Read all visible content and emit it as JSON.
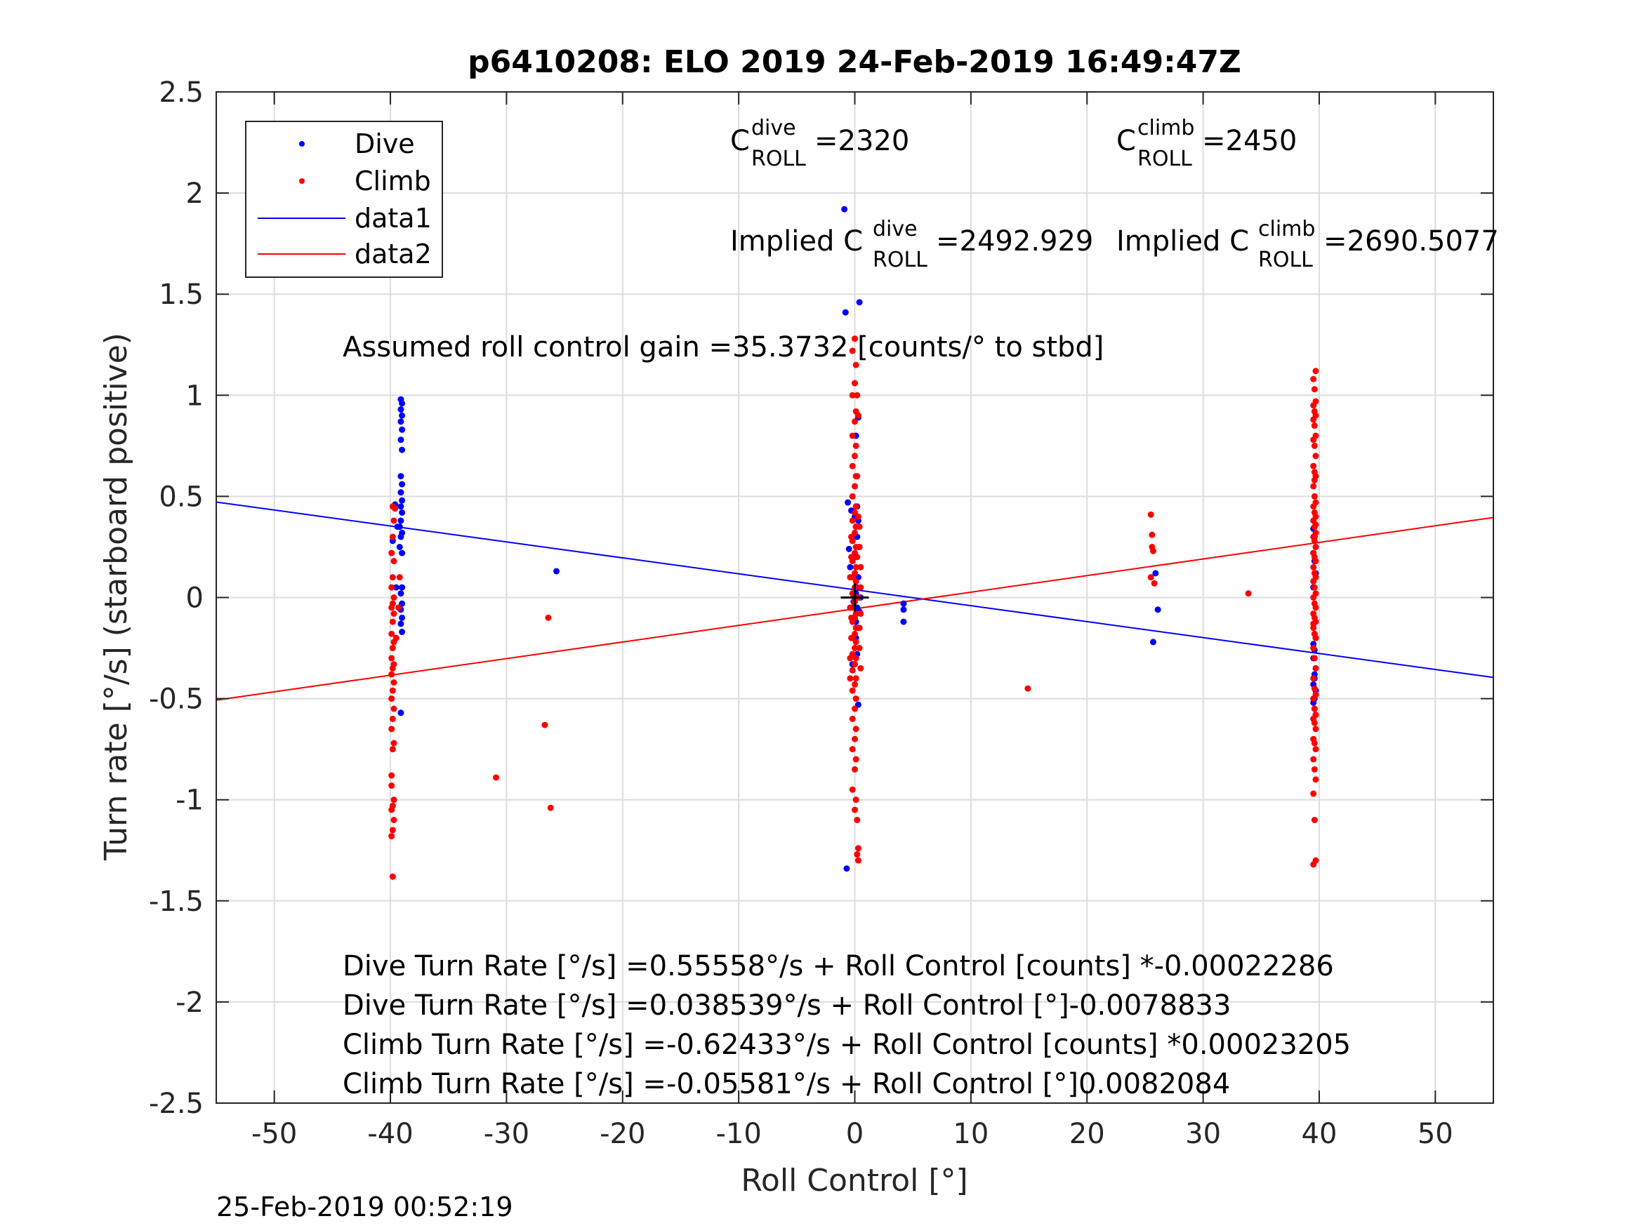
{
  "chart_data": {
    "type": "scatter",
    "title": "p6410208: ELO 2019 24-Feb-2019 16:49:47Z",
    "xlabel": "Roll Control [°]",
    "ylabel": "Turn rate [°/s] (starboard positive)",
    "xlim": [
      -55,
      55
    ],
    "ylim": [
      -2.5,
      2.5
    ],
    "xticks": [
      -50,
      -40,
      -30,
      -20,
      -10,
      0,
      10,
      20,
      30,
      40,
      50
    ],
    "xtick_labels": [
      "-50",
      "-40",
      "-30",
      "-20",
      "-10",
      "0",
      "10",
      "20",
      "30",
      "40",
      "50"
    ],
    "yticks": [
      -2.5,
      -2,
      -1.5,
      -1,
      -0.5,
      0,
      0.5,
      1,
      1.5,
      2,
      2.5
    ],
    "ytick_labels": [
      "-2.5",
      "-2",
      "-1.5",
      "-1",
      "-0.5",
      "0",
      "0.5",
      "1",
      "1.5",
      "2",
      "2.5"
    ],
    "grid": true,
    "legend_position": "top-left",
    "colors": {
      "dive": "#0000ff",
      "climb": "#ff0000",
      "marker": "#000000"
    },
    "legend": [
      {
        "label": "Dive",
        "kind": "points",
        "color": "#0000ff"
      },
      {
        "label": "Climb",
        "kind": "points",
        "color": "#ff0000"
      },
      {
        "label": "data1",
        "kind": "line",
        "color": "#0000ff"
      },
      {
        "label": "data2",
        "kind": "line",
        "color": "#ff0000"
      }
    ],
    "series": [
      {
        "name": "Dive",
        "color": "#0000ff",
        "x": [
          -39.1,
          -39.0,
          -39.1,
          -39.0,
          -39.1,
          -39.0,
          -39.1,
          -39.0,
          -39.1,
          -39.0,
          -39.1,
          -39.0,
          -39.1,
          -39.0,
          -39.1,
          -39.2,
          -39.0,
          -39.1,
          -39.0,
          -39.1,
          -39.0,
          -39.1,
          -39.0,
          -39.1,
          -39.0,
          -39.1,
          -39.6,
          -39.4,
          -39.8,
          -39.2,
          -39.5,
          -39.0,
          -25.7,
          -0.9,
          -0.8,
          -0.6,
          0.4,
          0.3,
          0.1,
          0.2,
          -0.3,
          0.0,
          0.3,
          -0.5,
          0.1,
          0.2,
          -0.2,
          0.4,
          0.0,
          -0.4,
          0.3,
          0.2,
          0.1,
          0.5,
          -0.1,
          0.2,
          0.0,
          -0.7,
          0.3,
          0.1,
          0.2,
          -0.2,
          0.3,
          0.1,
          0.4,
          4.2,
          4.2,
          4.2,
          25.9,
          26.1,
          25.7,
          39.5,
          39.6,
          39.7,
          39.5,
          39.6,
          39.7,
          39.5,
          39.6,
          39.7,
          39.5,
          39.6,
          39.5,
          39.7,
          39.6,
          39.5,
          39.7,
          39.6,
          39.5,
          39.6,
          39.7,
          39.5,
          39.6
        ],
        "y": [
          0.98,
          0.96,
          0.93,
          0.9,
          0.87,
          0.83,
          0.78,
          0.73,
          0.6,
          0.56,
          0.52,
          0.48,
          0.45,
          0.42,
          0.38,
          0.35,
          0.32,
          0.3,
          0.05,
          0.02,
          -0.03,
          -0.06,
          -0.1,
          -0.13,
          -0.17,
          -0.57,
          0.46,
          0.35,
          0.28,
          0.25,
          0.05,
          0.22,
          0.13,
          1.92,
          1.41,
          0.47,
          1.46,
          0.89,
          0.8,
          0.45,
          0.43,
          0.4,
          0.38,
          0.24,
          0.35,
          0.3,
          0.28,
          0.25,
          0.2,
          0.15,
          0.1,
          0.05,
          0.02,
          0.0,
          -0.02,
          -0.05,
          -0.1,
          -1.34,
          -0.15,
          -0.2,
          -0.28,
          -0.33,
          -0.53,
          -0.12,
          -0.07,
          -0.03,
          -0.06,
          -0.12,
          0.12,
          -0.06,
          -0.22,
          0.34,
          0.3,
          0.25,
          0.22,
          0.18,
          0.12,
          0.05,
          -0.18,
          -0.2,
          -0.23,
          -0.26,
          -0.3,
          -0.35,
          -0.4,
          -0.43,
          -0.46,
          -0.5,
          -0.52,
          -0.55,
          -0.58,
          -0.6,
          -0.38
        ]
      },
      {
        "name": "Climb",
        "color": "#ff0000",
        "x": [
          -39.8,
          -39.7,
          -39.8,
          -39.9,
          -39.7,
          -39.8,
          -39.9,
          -39.7,
          -39.8,
          -39.9,
          -39.7,
          -39.8,
          -39.9,
          -39.7,
          -39.8,
          -39.9,
          -39.7,
          -39.8,
          -39.9,
          -39.7,
          -39.8,
          -39.9,
          -39.7,
          -39.8,
          -39.9,
          -39.7,
          -39.8,
          -39.9,
          -39.7,
          -39.8,
          -39.9,
          -39.7,
          -39.8,
          -39.9,
          -39.8,
          -39.9,
          -39.6,
          -39.2,
          -39.3,
          -39.5,
          -30.9,
          -26.7,
          -26.4,
          -26.2,
          0.0,
          -0.2,
          0.1,
          0.0,
          -0.2,
          0.1,
          0.0,
          -0.2,
          0.1,
          0.0,
          -0.2,
          0.1,
          0.0,
          -0.2,
          0.1,
          0.0,
          -0.2,
          0.1,
          0.0,
          -0.2,
          0.1,
          0.0,
          -0.2,
          0.1,
          0.0,
          -0.2,
          0.1,
          0.0,
          -0.2,
          0.1,
          0.0,
          -0.2,
          0.1,
          0.0,
          -0.2,
          0.1,
          0.0,
          -0.2,
          0.1,
          0.0,
          -0.2,
          0.1,
          0.0,
          -0.2,
          0.1,
          0.0,
          -0.2,
          0.1,
          0.0,
          -0.2,
          0.1,
          0.0,
          -0.2,
          0.1,
          0.0,
          -0.2,
          0.1,
          0.0,
          0.2,
          0.3,
          0.2,
          0.3,
          0.2,
          0.3,
          0.2,
          0.3,
          0.2,
          0.3,
          -0.3,
          -0.4,
          -0.3,
          -0.4,
          -0.3,
          -0.4,
          -0.3,
          -0.4,
          0.4,
          0.5,
          0.4,
          0.5,
          0.4,
          0.5,
          0.4,
          0.5,
          14.9,
          25.5,
          25.6,
          25.5,
          25.6,
          25.7,
          25.8,
          33.9,
          39.5,
          39.6,
          39.7,
          39.5,
          39.6,
          39.7,
          39.5,
          39.6,
          39.7,
          39.5,
          39.6,
          39.7,
          39.5,
          39.6,
          39.7,
          39.5,
          39.6,
          39.7,
          39.5,
          39.6,
          39.7,
          39.5,
          39.6,
          39.7,
          39.5,
          39.6,
          39.7,
          39.5,
          39.6,
          39.7,
          39.5,
          39.6,
          39.7,
          39.5,
          39.6,
          39.7,
          39.5,
          39.6,
          39.7,
          39.5,
          39.6,
          39.7,
          39.5,
          39.6,
          39.7,
          39.5,
          39.6,
          39.7,
          39.5,
          39.6,
          39.7,
          39.5,
          39.6,
          39.7,
          39.5,
          39.6,
          39.7,
          39.5,
          39.6,
          39.7,
          39.5,
          39.6,
          39.7,
          39.5,
          39.6,
          39.7,
          39.5,
          39.6,
          39.7,
          39.5,
          39.6,
          39.7,
          39.5
        ],
        "y": [
          0.45,
          0.38,
          0.3,
          0.22,
          0.18,
          0.1,
          0.05,
          0.0,
          -0.03,
          -0.05,
          -0.08,
          -0.12,
          -0.18,
          -0.22,
          -0.25,
          -0.3,
          -0.33,
          -0.35,
          -0.38,
          -0.42,
          -0.46,
          -0.5,
          -0.55,
          -0.6,
          -0.65,
          -0.72,
          -0.75,
          -0.93,
          -1.0,
          -1.03,
          -1.05,
          -1.1,
          -1.15,
          -1.18,
          -1.38,
          -0.88,
          0.44,
          0.1,
          -0.05,
          -0.2,
          -0.89,
          -0.63,
          -0.1,
          -1.04,
          1.28,
          1.22,
          1.15,
          1.06,
          1.0,
          0.92,
          0.87,
          0.8,
          0.75,
          0.7,
          0.65,
          0.6,
          0.55,
          0.5,
          0.45,
          0.42,
          0.38,
          0.35,
          0.32,
          0.28,
          0.25,
          0.22,
          0.18,
          0.15,
          0.12,
          0.1,
          0.08,
          0.05,
          0.02,
          0.0,
          -0.02,
          -0.05,
          -0.08,
          -0.1,
          -0.12,
          -0.15,
          -0.18,
          -0.2,
          -0.22,
          -0.25,
          -0.28,
          -0.3,
          -0.33,
          -0.36,
          -0.4,
          -0.43,
          -0.46,
          -0.5,
          -0.55,
          -0.6,
          -0.65,
          -0.7,
          -0.75,
          -0.8,
          -0.85,
          -0.95,
          -1.0,
          -1.05,
          -1.1,
          -1.24,
          -1.27,
          -1.3,
          1.0,
          0.9,
          0.6,
          0.4,
          0.2,
          0.0,
          -0.2,
          -0.4,
          0.3,
          0.1,
          -0.1,
          -0.3,
          0.2,
          -0.05,
          -0.25,
          0.15,
          0.25,
          0.05,
          -0.15,
          -0.35,
          0.35,
          -0.08,
          -0.45,
          0.1,
          0.25,
          0.41,
          0.31,
          0.23,
          0.07,
          0.02,
          -0.13,
          0.3,
          1.12,
          1.08,
          1.03,
          0.97,
          0.95,
          0.92,
          0.9,
          0.88,
          0.85,
          0.8,
          0.78,
          0.75,
          0.7,
          0.65,
          0.62,
          0.6,
          0.55,
          0.5,
          0.47,
          0.45,
          0.42,
          0.4,
          0.38,
          0.35,
          0.32,
          0.3,
          0.28,
          0.25,
          0.22,
          0.2,
          0.18,
          0.15,
          0.12,
          0.1,
          0.08,
          0.05,
          0.02,
          0.0,
          -0.03,
          -0.05,
          -0.08,
          -0.1,
          -0.12,
          -0.15,
          -0.18,
          -0.2,
          -0.25,
          -0.3,
          -0.35,
          -0.4,
          -0.45,
          -0.48,
          -0.5,
          -0.55,
          -0.58,
          -0.6,
          -0.62,
          -0.65,
          -0.7,
          -0.72,
          -0.75,
          -0.8,
          -0.85,
          -0.9,
          -0.97,
          -1.1,
          -1.3,
          -1.32,
          0.58,
          0.36,
          -0.25
        ]
      }
    ],
    "fit_lines": [
      {
        "name": "data1",
        "color": "#0000ff",
        "x": [
          -55,
          55
        ],
        "y": [
          0.472,
          -0.3952
        ]
      },
      {
        "name": "data2",
        "color": "#ff0000",
        "x": [
          -55,
          55
        ],
        "y": [
          -0.5073,
          0.3957
        ]
      }
    ],
    "marker": {
      "x": 0,
      "y": 0,
      "symbol": "+"
    },
    "annotations": {
      "c_dive_base": "C",
      "c_dive_sup": "dive",
      "c_dive_sub": "ROLL",
      "c_dive_value": " =2320",
      "c_climb_base": "C",
      "c_climb_sup": "climb",
      "c_climb_sub": "ROLL",
      "c_climb_value": " =2450",
      "implied_dive_prefix": "Implied C",
      "implied_dive_sup": "dive",
      "implied_dive_sub": "ROLL",
      "implied_dive_value": " =2492.929",
      "implied_climb_prefix": "Implied C",
      "implied_climb_sup": "climb",
      "implied_climb_sub": "ROLL",
      "implied_climb_value": " =2690.5077",
      "gain": "Assumed roll control gain =35.3732 [counts/° to stbd]",
      "eq1": "Dive Turn Rate [°/s] =0.55558°/s + Roll Control [counts] *-0.00022286",
      "eq2": "Dive Turn Rate [°/s] =0.038539°/s + Roll Control [°]-0.0078833",
      "eq3": "Climb Turn Rate [°/s] =-0.62433°/s + Roll Control [counts] *0.00023205",
      "eq4": "Climb Turn Rate [°/s] =-0.05581°/s + Roll Control [°]0.0082084"
    },
    "timestamp": "25-Feb-2019 00:52:19"
  }
}
